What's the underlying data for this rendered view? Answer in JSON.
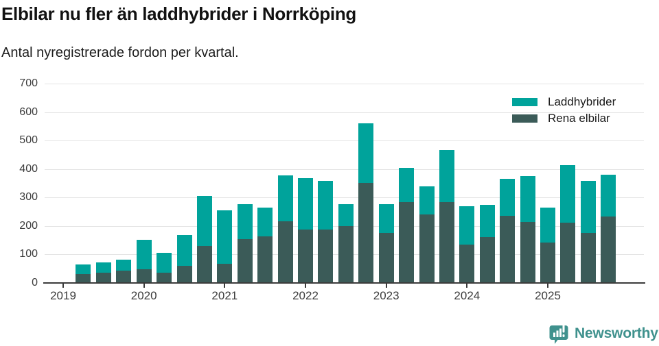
{
  "header": {
    "title": "Elbilar nu fler än laddhybrider i Norrköping",
    "subtitle": "Antal nyregistrerade fordon per kvartal."
  },
  "legend": [
    {
      "label": "Laddhybrider"
    },
    {
      "label": "Rena elbilar"
    }
  ],
  "footer": {
    "brand": "Newsworthy",
    "brand_color": "#3F918D"
  },
  "chart_data": {
    "type": "bar",
    "stacked": true,
    "title": "Elbilar nu fler än laddhybrider i Norrköping",
    "subtitle": "Antal nyregistrerade fordon per kvartal.",
    "xlabel": "",
    "ylabel": "",
    "ylim": [
      0,
      700
    ],
    "y_ticks": [
      0,
      100,
      200,
      300,
      400,
      500,
      600,
      700
    ],
    "grid": "horizontal",
    "legend_position": "top-right",
    "x_tick_labels": [
      "2019",
      "2020",
      "2021",
      "2022",
      "2023",
      "2024",
      "2025"
    ],
    "categories": [
      "2019 Q2",
      "2019 Q3",
      "2019 Q4",
      "2020 Q1",
      "2020 Q2",
      "2020 Q3",
      "2020 Q4",
      "2021 Q1",
      "2021 Q2",
      "2021 Q3",
      "2021 Q4",
      "2022 Q1",
      "2022 Q2",
      "2022 Q3",
      "2022 Q4",
      "2023 Q1",
      "2023 Q2",
      "2023 Q3",
      "2023 Q4",
      "2024 Q1",
      "2024 Q2",
      "2024 Q3",
      "2024 Q4",
      "2025 Q1",
      "2025 Q2",
      "2025 Q3",
      "2025 Q4"
    ],
    "series": [
      {
        "name": "Rena elbilar",
        "color": "#3B5B58",
        "values": [
          30,
          36,
          43,
          48,
          36,
          59,
          128,
          66,
          152,
          163,
          217,
          188,
          188,
          198,
          350,
          176,
          283,
          239,
          284,
          133,
          160,
          234,
          214,
          140,
          212,
          174,
          233
        ]
      },
      {
        "name": "Laddhybrider",
        "color": "#00A39B",
        "values": [
          35,
          34,
          39,
          102,
          68,
          109,
          177,
          189,
          123,
          102,
          160,
          179,
          170,
          79,
          210,
          101,
          122,
          99,
          183,
          137,
          114,
          131,
          161,
          125,
          201,
          183,
          148
        ]
      }
    ]
  }
}
